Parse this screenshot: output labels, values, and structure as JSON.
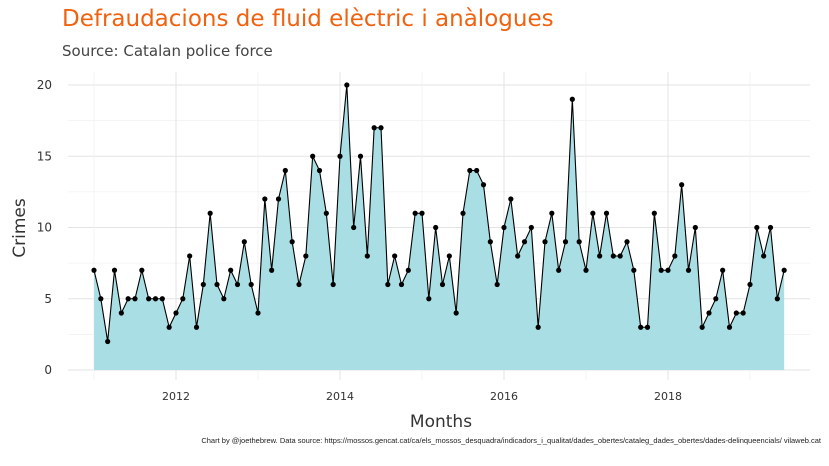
{
  "chart_data": {
    "type": "area",
    "title": "Defraudacions de fluid elèctric i anàlogues",
    "subtitle": "Source: Catalan police force",
    "caption": "Chart by @joethebrew. Data source: https://mossos.gencat.cat/ca/els_mossos_desquadra/indicadors_i_qualitat/dades_obertes/cataleg_dades_obertes/dades-delinqueencials/ vilaweb.cat",
    "xlabel": "Months",
    "ylabel": "Crimes",
    "x_start": "2011-01",
    "x_ticks": [
      "2012",
      "2014",
      "2016",
      "2018"
    ],
    "y_ticks": [
      0,
      5,
      10,
      15,
      20
    ],
    "ylim": [
      0,
      21
    ],
    "grid": true,
    "colors": {
      "fill": "#a9dfe4",
      "line": "#000000",
      "point": "#000000",
      "title": "#f0620f"
    },
    "values": [
      7,
      5,
      2,
      7,
      4,
      5,
      5,
      7,
      5,
      5,
      5,
      3,
      4,
      5,
      8,
      3,
      6,
      11,
      6,
      5,
      7,
      6,
      9,
      6,
      4,
      12,
      7,
      12,
      14,
      9,
      6,
      8,
      15,
      14,
      11,
      6,
      15,
      20,
      10,
      15,
      8,
      17,
      17,
      6,
      8,
      6,
      7,
      11,
      11,
      5,
      10,
      6,
      8,
      4,
      11,
      14,
      14,
      13,
      9,
      6,
      10,
      12,
      8,
      9,
      10,
      3,
      9,
      11,
      7,
      9,
      19,
      9,
      7,
      11,
      8,
      11,
      8,
      8,
      9,
      7,
      3,
      3,
      11,
      7,
      7,
      8,
      13,
      7,
      10,
      3,
      4,
      5,
      7,
      3,
      4,
      4,
      6,
      10,
      8,
      10,
      5,
      7
    ]
  }
}
